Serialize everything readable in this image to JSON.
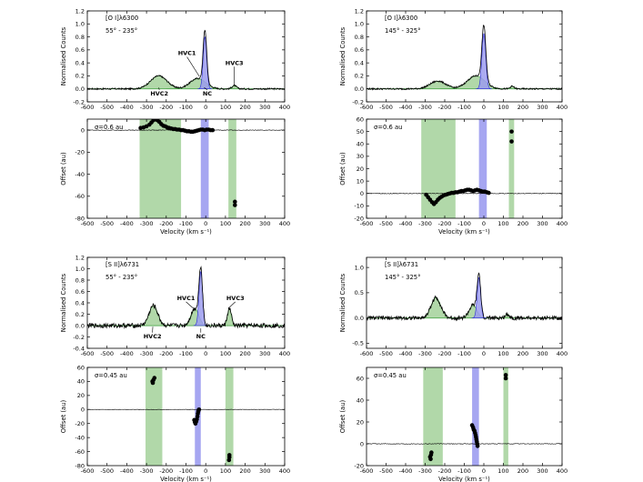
{
  "figure": {
    "common": {
      "velocity_label": "Velocity (km s⁻¹)",
      "flux_ylabel": "Normalised Counts",
      "offset_ylabel": "Offset (au)"
    },
    "colors": {
      "green_fill": "#a9d4a0",
      "green_line": "#3f9f3f",
      "blue_fill": "#9c9cef",
      "blue_line": "#2a2ad6",
      "spectrum": "#000000",
      "dots": "#000000"
    }
  },
  "chart_data": [
    {
      "id": "a",
      "type": "line",
      "title_line": "[O I]λ6300",
      "pa_label": "55° - 235°",
      "xlim": [
        -600,
        400
      ],
      "ylim": [
        -0.2,
        1.2
      ],
      "xticks": [
        -600,
        -500,
        -400,
        -300,
        -200,
        -100,
        0,
        100,
        200,
        300,
        400
      ],
      "yticks": [
        -0.2,
        0.0,
        0.2,
        0.4,
        0.6,
        0.8,
        1.0,
        1.2
      ],
      "ytick_labels": [
        "-0.2",
        "0.0",
        "0.2",
        "0.4",
        "0.6",
        "0.8",
        "1.0",
        "1.2"
      ],
      "baseline": 0.0,
      "noise": 0.012,
      "components": [
        {
          "name": "HVC2",
          "kind": "hvc",
          "center": -238,
          "sigma": 42,
          "amp": 0.2
        },
        {
          "name": "HVC1",
          "kind": "hvc",
          "center": -40,
          "sigma": 40,
          "amp": 0.16
        },
        {
          "name": "NC",
          "kind": "nc",
          "center": -4,
          "sigma": 9,
          "amp": 0.8
        },
        {
          "name": "HVC3",
          "kind": "hvc",
          "center": 145,
          "sigma": 12,
          "amp": 0.05
        }
      ],
      "annotations": [
        {
          "text": "HVC1",
          "tip": [
            -32,
            0.19
          ],
          "label_at": [
            -95,
            0.52
          ]
        },
        {
          "text": "HVC2",
          "tip": [
            -238,
            0.02
          ],
          "label_at": [
            -235,
            -0.1
          ]
        },
        {
          "text": "NC",
          "tip": [
            -8,
            0.02
          ],
          "label_at": [
            8,
            -0.1
          ]
        },
        {
          "text": "HVC3",
          "tip": [
            145,
            0.05
          ],
          "label_at": [
            145,
            0.37
          ]
        }
      ]
    },
    {
      "id": "b",
      "type": "scatter",
      "sigma_label": "σ=0.6 au",
      "xlim": [
        -600,
        400
      ],
      "ylim": [
        -80,
        10
      ],
      "xticks": [
        -600,
        -500,
        -400,
        -300,
        -200,
        -100,
        0,
        100,
        200,
        300,
        400
      ],
      "yticks": [
        -80,
        -60,
        -40,
        -20,
        0
      ],
      "xlabel_show": true,
      "bands": [
        {
          "kind": "hvc",
          "x0": -335,
          "x1": -125
        },
        {
          "kind": "nc",
          "x0": -25,
          "x1": 15
        },
        {
          "kind": "hvc",
          "x0": 115,
          "x1": 155
        }
      ],
      "clusters": [
        {
          "x": [
            -330,
            45
          ],
          "y0": 1.5,
          "amp": 0,
          "kind": "flat",
          "n": 0
        }
      ],
      "points": [
        {
          "x": -330,
          "y": 2
        },
        {
          "x": -315,
          "y": 2.5
        },
        {
          "x": -300,
          "y": 3.5
        },
        {
          "x": -285,
          "y": 5
        },
        {
          "x": -275,
          "y": 7
        },
        {
          "x": -265,
          "y": 9
        },
        {
          "x": -255,
          "y": 10
        },
        {
          "x": -245,
          "y": 9
        },
        {
          "x": -235,
          "y": 7.5
        },
        {
          "x": -225,
          "y": 5.5
        },
        {
          "x": -215,
          "y": 4
        },
        {
          "x": -205,
          "y": 3.5
        },
        {
          "x": -195,
          "y": 2.5
        },
        {
          "x": -185,
          "y": 2
        },
        {
          "x": -175,
          "y": 1.5
        },
        {
          "x": -165,
          "y": 1
        },
        {
          "x": -155,
          "y": 1
        },
        {
          "x": -145,
          "y": 0.5
        },
        {
          "x": -135,
          "y": 0.5
        },
        {
          "x": -125,
          "y": 0
        },
        {
          "x": -115,
          "y": 0
        },
        {
          "x": -105,
          "y": -0.5
        },
        {
          "x": -95,
          "y": -1
        },
        {
          "x": -85,
          "y": -1
        },
        {
          "x": -75,
          "y": -1.5
        },
        {
          "x": -65,
          "y": -1.5
        },
        {
          "x": -55,
          "y": -1
        },
        {
          "x": -45,
          "y": -0.5
        },
        {
          "x": -35,
          "y": 0
        },
        {
          "x": -25,
          "y": 0.5
        },
        {
          "x": -15,
          "y": 0.5
        },
        {
          "x": -5,
          "y": 0
        },
        {
          "x": 5,
          "y": 0.5
        },
        {
          "x": 15,
          "y": 0.5
        },
        {
          "x": 25,
          "y": 0
        },
        {
          "x": 35,
          "y": 0
        },
        {
          "x": 148,
          "y": -65
        },
        {
          "x": 148,
          "y": -68
        }
      ],
      "trace_y": 0
    },
    {
      "id": "c",
      "type": "line",
      "title_line": "[O I]λ6300",
      "pa_label": "145° - 325°",
      "xlim": [
        -600,
        400
      ],
      "ylim": [
        -0.2,
        1.2
      ],
      "xticks": [
        -600,
        -500,
        -400,
        -300,
        -200,
        -100,
        0,
        100,
        200,
        300,
        400
      ],
      "yticks": [
        -0.2,
        0.0,
        0.2,
        0.4,
        0.6,
        0.8,
        1.0,
        1.2
      ],
      "ytick_labels": [
        "-0.2",
        "0.0",
        "0.2",
        "0.4",
        "0.6",
        "0.8",
        "1.0",
        "1.2"
      ],
      "baseline": 0.0,
      "noise": 0.012,
      "components": [
        {
          "name": "HVC2",
          "kind": "hvc",
          "center": -235,
          "sigma": 40,
          "amp": 0.12
        },
        {
          "name": "HVC1",
          "kind": "hvc",
          "center": -40,
          "sigma": 45,
          "amp": 0.2
        },
        {
          "name": "NC",
          "kind": "nc",
          "center": 0,
          "sigma": 10,
          "amp": 0.85
        },
        {
          "name": "HVC3",
          "kind": "hvc",
          "center": 145,
          "sigma": 10,
          "amp": 0.04
        }
      ],
      "annotations": []
    },
    {
      "id": "d",
      "type": "scatter",
      "sigma_label": "σ=0.6 au",
      "xlim": [
        -600,
        400
      ],
      "ylim": [
        -20,
        60
      ],
      "xticks": [
        -600,
        -500,
        -400,
        -300,
        -200,
        -100,
        0,
        100,
        200,
        300,
        400
      ],
      "yticks": [
        -20,
        -10,
        0,
        10,
        20,
        30,
        40,
        50,
        60
      ],
      "xlabel_show": true,
      "bands": [
        {
          "kind": "hvc",
          "x0": -320,
          "x1": -145
        },
        {
          "kind": "nc",
          "x0": -25,
          "x1": 15
        },
        {
          "kind": "hvc",
          "x0": 128,
          "x1": 155
        }
      ],
      "points": [
        {
          "x": -295,
          "y": -1
        },
        {
          "x": -285,
          "y": -3
        },
        {
          "x": -275,
          "y": -5
        },
        {
          "x": -265,
          "y": -7
        },
        {
          "x": -255,
          "y": -8.5
        },
        {
          "x": -245,
          "y": -7
        },
        {
          "x": -235,
          "y": -5
        },
        {
          "x": -225,
          "y": -3.5
        },
        {
          "x": -215,
          "y": -2.5
        },
        {
          "x": -205,
          "y": -1.5
        },
        {
          "x": -195,
          "y": -1
        },
        {
          "x": -185,
          "y": -0.5
        },
        {
          "x": -175,
          "y": 0
        },
        {
          "x": -165,
          "y": 0.5
        },
        {
          "x": -155,
          "y": 0.5
        },
        {
          "x": -145,
          "y": 1
        },
        {
          "x": -135,
          "y": 1
        },
        {
          "x": -125,
          "y": 1.5
        },
        {
          "x": -115,
          "y": 2
        },
        {
          "x": -105,
          "y": 2
        },
        {
          "x": -95,
          "y": 2.5
        },
        {
          "x": -85,
          "y": 3
        },
        {
          "x": -75,
          "y": 3
        },
        {
          "x": -65,
          "y": 2.5
        },
        {
          "x": -55,
          "y": 2
        },
        {
          "x": -45,
          "y": 2.5
        },
        {
          "x": -35,
          "y": 3
        },
        {
          "x": -25,
          "y": 2.5
        },
        {
          "x": -15,
          "y": 2
        },
        {
          "x": -5,
          "y": 1.5
        },
        {
          "x": 5,
          "y": 1.5
        },
        {
          "x": 15,
          "y": 1
        },
        {
          "x": 25,
          "y": 0.5
        },
        {
          "x": 142,
          "y": 50
        },
        {
          "x": 142,
          "y": 42
        }
      ],
      "trace_y": 0
    },
    {
      "id": "e",
      "type": "line",
      "title_line": "[S II]λ6731",
      "pa_label": "55° - 235°",
      "xlim": [
        -600,
        400
      ],
      "ylim": [
        -0.4,
        1.2
      ],
      "xticks": [
        -600,
        -500,
        -400,
        -300,
        -200,
        -100,
        0,
        100,
        200,
        300,
        400
      ],
      "yticks": [
        -0.4,
        -0.2,
        0.0,
        0.2,
        0.4,
        0.6,
        0.8,
        1.0,
        1.2
      ],
      "ytick_labels": [
        "-0.4",
        "-0.2",
        "0.0",
        "0.2",
        "0.4",
        "0.6",
        "0.8",
        "1.0",
        "1.2"
      ],
      "baseline": 0.0,
      "noise": 0.04,
      "components": [
        {
          "name": "HVC2",
          "kind": "hvc",
          "center": -265,
          "sigma": 22,
          "amp": 0.35
        },
        {
          "name": "HVC1",
          "kind": "hvc",
          "center": -55,
          "sigma": 20,
          "amp": 0.3
        },
        {
          "name": "NC",
          "kind": "nc",
          "center": -25,
          "sigma": 9,
          "amp": 0.95
        },
        {
          "name": "HVC3",
          "kind": "hvc",
          "center": 120,
          "sigma": 10,
          "amp": 0.3
        }
      ],
      "annotations": [
        {
          "text": "HVC1",
          "tip": [
            -55,
            0.28
          ],
          "label_at": [
            -100,
            0.45
          ]
        },
        {
          "text": "HVC2",
          "tip": [
            -268,
            -0.02
          ],
          "label_at": [
            -270,
            -0.22
          ]
        },
        {
          "text": "NC",
          "tip": [
            -25,
            -0.05
          ],
          "label_at": [
            -25,
            -0.22
          ]
        },
        {
          "text": "HVC3",
          "tip": [
            120,
            0.32
          ],
          "label_at": [
            150,
            0.45
          ]
        }
      ]
    },
    {
      "id": "f",
      "type": "scatter",
      "sigma_label": "σ=0.45 au",
      "xlim": [
        -600,
        400
      ],
      "ylim": [
        -80,
        60
      ],
      "xticks": [
        -600,
        -500,
        -400,
        -300,
        -200,
        -100,
        0,
        100,
        200,
        300,
        400
      ],
      "yticks": [
        -80,
        -60,
        -40,
        -20,
        0,
        20,
        40,
        60
      ],
      "xlabel_show": true,
      "bands": [
        {
          "kind": "hvc",
          "x0": -305,
          "x1": -220
        },
        {
          "kind": "nc",
          "x0": -55,
          "x1": -25
        },
        {
          "kind": "hvc",
          "x0": 100,
          "x1": 140
        }
      ],
      "points": [
        {
          "x": -270,
          "y": 40
        },
        {
          "x": -265,
          "y": 42
        },
        {
          "x": -260,
          "y": 45
        },
        {
          "x": -268,
          "y": 38
        },
        {
          "x": -58,
          "y": -15
        },
        {
          "x": -55,
          "y": -18
        },
        {
          "x": -52,
          "y": -20
        },
        {
          "x": -48,
          "y": -17
        },
        {
          "x": -45,
          "y": -14
        },
        {
          "x": -42,
          "y": -10
        },
        {
          "x": -40,
          "y": -6
        },
        {
          "x": -38,
          "y": -3
        },
        {
          "x": -36,
          "y": -1
        },
        {
          "x": -34,
          "y": 0
        },
        {
          "x": 120,
          "y": -65
        },
        {
          "x": 120,
          "y": -68
        },
        {
          "x": 118,
          "y": -72
        }
      ],
      "trace_y": 0
    },
    {
      "id": "g",
      "type": "line",
      "title_line": "[S II]λ6731",
      "pa_label": "145° - 325°",
      "xlim": [
        -600,
        400
      ],
      "ylim": [
        -0.6,
        1.2
      ],
      "xticks": [
        -600,
        -500,
        -400,
        -300,
        -200,
        -100,
        0,
        100,
        200,
        300,
        400
      ],
      "yticks": [
        -0.5,
        0.0,
        0.5,
        1.0
      ],
      "ytick_labels": [
        "-0.5",
        "0.0",
        "0.5",
        "1.0"
      ],
      "baseline": 0.0,
      "noise": 0.04,
      "components": [
        {
          "name": "HVC2",
          "kind": "hvc",
          "center": -245,
          "sigma": 25,
          "amp": 0.4
        },
        {
          "name": "HVC1",
          "kind": "hvc",
          "center": -55,
          "sigma": 20,
          "amp": 0.25
        },
        {
          "name": "NC",
          "kind": "nc",
          "center": -25,
          "sigma": 9,
          "amp": 0.8
        },
        {
          "name": "HVC3",
          "kind": "hvc",
          "center": 120,
          "sigma": 10,
          "amp": 0.08
        }
      ],
      "annotations": []
    },
    {
      "id": "h",
      "type": "scatter",
      "sigma_label": "σ=0.45 au",
      "xlim": [
        -600,
        400
      ],
      "ylim": [
        -20,
        70
      ],
      "xticks": [
        -600,
        -500,
        -400,
        -300,
        -200,
        -100,
        0,
        100,
        200,
        300,
        400
      ],
      "yticks": [
        -20,
        0,
        20,
        40,
        60
      ],
      "xlabel_show": true,
      "bands": [
        {
          "kind": "hvc",
          "x0": -310,
          "x1": -210
        },
        {
          "kind": "nc",
          "x0": -60,
          "x1": -25
        },
        {
          "kind": "hvc",
          "x0": 100,
          "x1": 125
        }
      ],
      "points": [
        {
          "x": -275,
          "y": -12
        },
        {
          "x": -272,
          "y": -14
        },
        {
          "x": -270,
          "y": -10
        },
        {
          "x": -268,
          "y": -8
        },
        {
          "x": -60,
          "y": 17
        },
        {
          "x": -55,
          "y": 15
        },
        {
          "x": -52,
          "y": 13
        },
        {
          "x": -48,
          "y": 12
        },
        {
          "x": -45,
          "y": 10
        },
        {
          "x": -42,
          "y": 8
        },
        {
          "x": -40,
          "y": 6
        },
        {
          "x": -38,
          "y": 4
        },
        {
          "x": -36,
          "y": 2
        },
        {
          "x": -34,
          "y": 0
        },
        {
          "x": -32,
          "y": -2
        },
        {
          "x": 112,
          "y": 60
        },
        {
          "x": 112,
          "y": 63
        }
      ],
      "trace_y": 0
    }
  ]
}
